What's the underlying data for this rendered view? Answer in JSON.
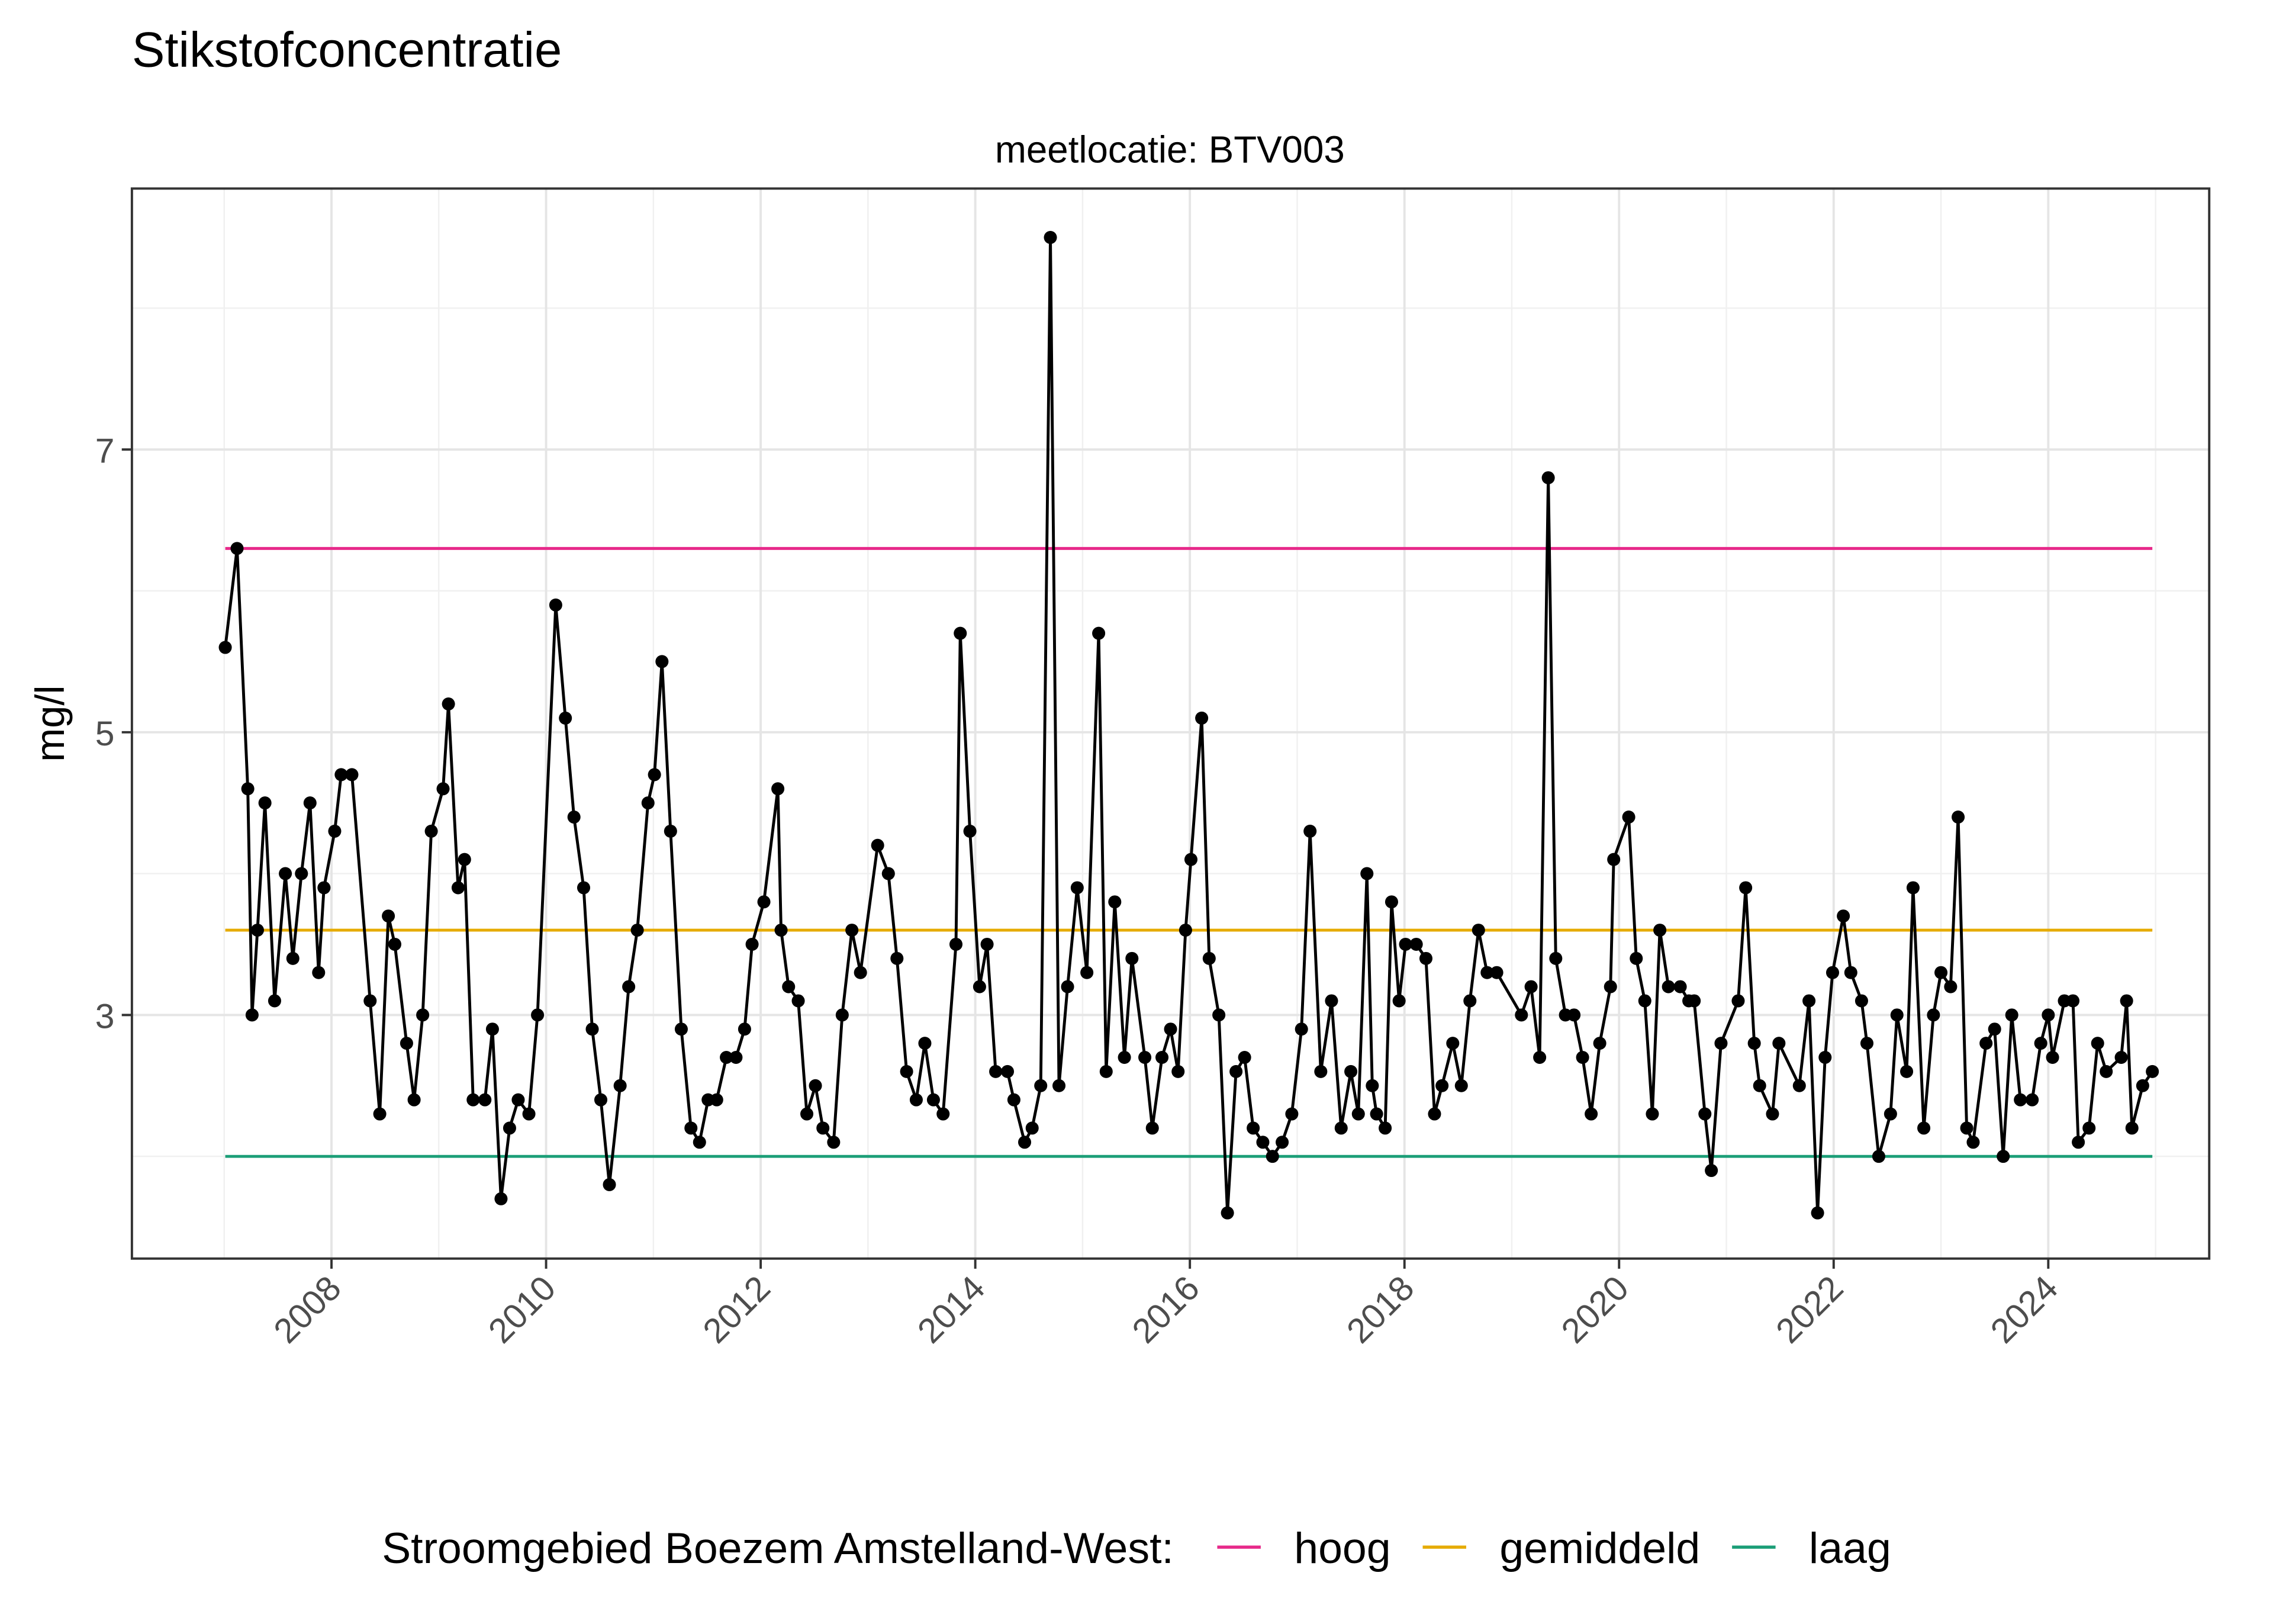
{
  "chart_data": {
    "type": "line",
    "title": "Stikstofconcentratie",
    "subtitle": "meetlocatie: BTV003",
    "y_label": "mg/l",
    "legend_title": "Stroomgebied Boezem Amstelland-West:",
    "legend_position": "bottom",
    "grid": true,
    "xlim": [
      2006.14,
      2025.5
    ],
    "xticks": [
      2008,
      2010,
      2012,
      2014,
      2016,
      2018,
      2020,
      2022,
      2024
    ],
    "x_minor_ticks": [
      2007,
      2009,
      2011,
      2013,
      2015,
      2017,
      2019,
      2021,
      2023,
      2025
    ],
    "ylim": [
      1.277,
      8.846
    ],
    "yticks": [
      3,
      5,
      7
    ],
    "y_minor_ticks": [
      2,
      4,
      6,
      8
    ],
    "x": [
      2007.01,
      2007.12,
      2007.22,
      2007.26,
      2007.31,
      2007.38,
      2007.47,
      2007.57,
      2007.64,
      2007.72,
      2007.8,
      2007.88,
      2007.93,
      2008.03,
      2008.09,
      2008.19,
      2008.36,
      2008.45,
      2008.53,
      2008.59,
      2008.7,
      2008.77,
      2008.85,
      2008.93,
      2009.04,
      2009.09,
      2009.18,
      2009.24,
      2009.32,
      2009.43,
      2009.5,
      2009.58,
      2009.66,
      2009.74,
      2009.84,
      2009.92,
      2010.09,
      2010.18,
      2010.26,
      2010.35,
      2010.43,
      2010.51,
      2010.59,
      2010.69,
      2010.77,
      2010.85,
      2010.95,
      2011.01,
      2011.08,
      2011.16,
      2011.26,
      2011.35,
      2011.43,
      2011.51,
      2011.59,
      2011.68,
      2011.77,
      2011.85,
      2011.92,
      2012.03,
      2012.16,
      2012.19,
      2012.26,
      2012.35,
      2012.43,
      2012.51,
      2012.58,
      2012.68,
      2012.76,
      2012.85,
      2012.93,
      2013.09,
      2013.19,
      2013.27,
      2013.36,
      2013.45,
      2013.53,
      2013.61,
      2013.7,
      2013.82,
      2013.86,
      2013.95,
      2014.04,
      2014.11,
      2014.19,
      2014.3,
      2014.36,
      2014.46,
      2014.53,
      2014.61,
      2014.7,
      2014.78,
      2014.86,
      2014.95,
      2015.04,
      2015.15,
      2015.22,
      2015.3,
      2015.39,
      2015.46,
      2015.58,
      2015.65,
      2015.74,
      2015.82,
      2015.89,
      2015.96,
      2016.01,
      2016.11,
      2016.18,
      2016.27,
      2016.35,
      2016.43,
      2016.51,
      2016.59,
      2016.68,
      2016.77,
      2016.86,
      2016.95,
      2017.04,
      2017.12,
      2017.22,
      2017.32,
      2017.41,
      2017.5,
      2017.57,
      2017.65,
      2017.7,
      2017.74,
      2017.82,
      2017.88,
      2017.95,
      2018.01,
      2018.11,
      2018.2,
      2018.28,
      2018.35,
      2018.45,
      2018.53,
      2018.61,
      2018.69,
      2018.77,
      2018.86,
      2019.09,
      2019.18,
      2019.26,
      2019.34,
      2019.41,
      2019.5,
      2019.58,
      2019.66,
      2019.74,
      2019.82,
      2019.92,
      2019.95,
      2020.09,
      2020.16,
      2020.24,
      2020.31,
      2020.38,
      2020.46,
      2020.57,
      2020.65,
      2020.7,
      2020.8,
      2020.86,
      2020.95,
      2021.11,
      2021.18,
      2021.26,
      2021.31,
      2021.43,
      2021.49,
      2021.68,
      2021.77,
      2021.85,
      2021.92,
      2021.99,
      2022.09,
      2022.16,
      2022.26,
      2022.31,
      2022.42,
      2022.53,
      2022.59,
      2022.68,
      2022.74,
      2022.84,
      2022.93,
      2023.0,
      2023.09,
      2023.16,
      2023.24,
      2023.3,
      2023.42,
      2023.5,
      2023.58,
      2023.66,
      2023.74,
      2023.85,
      2023.93,
      2024.0,
      2024.04,
      2024.15,
      2024.23,
      2024.28,
      2024.38,
      2024.46,
      2024.54,
      2024.68,
      2024.73,
      2024.78,
      2024.88,
      2024.97
    ],
    "series": [
      {
        "color": "#000000",
        "values": [
          5.6,
          6.3,
          4.6,
          3.0,
          3.6,
          4.5,
          3.1,
          4.0,
          3.4,
          4.0,
          4.5,
          3.3,
          3.9,
          4.3,
          4.7,
          4.7,
          3.1,
          2.3,
          3.7,
          3.5,
          2.8,
          2.4,
          3.0,
          4.3,
          4.6,
          5.2,
          3.9,
          4.1,
          2.4,
          2.4,
          2.9,
          1.7,
          2.2,
          2.4,
          2.3,
          3.0,
          5.9,
          5.1,
          4.4,
          3.9,
          2.9,
          2.4,
          1.8,
          2.5,
          3.2,
          3.6,
          4.5,
          4.7,
          5.5,
          4.3,
          2.9,
          2.2,
          2.1,
          2.4,
          2.4,
          2.7,
          2.7,
          2.9,
          3.5,
          3.8,
          4.6,
          3.6,
          3.2,
          3.1,
          2.3,
          2.5,
          2.2,
          2.1,
          3.0,
          3.6,
          3.3,
          4.2,
          4.0,
          3.4,
          2.6,
          2.4,
          2.8,
          2.4,
          2.3,
          3.5,
          5.7,
          4.3,
          3.2,
          3.5,
          2.6,
          2.6,
          2.4,
          2.1,
          2.2,
          2.5,
          8.5,
          2.5,
          3.2,
          3.9,
          3.3,
          5.7,
          2.6,
          3.8,
          2.7,
          3.4,
          2.7,
          2.2,
          2.7,
          2.9,
          2.6,
          3.6,
          4.1,
          5.1,
          3.4,
          3.0,
          1.6,
          2.6,
          2.7,
          2.2,
          2.1,
          2.0,
          2.1,
          2.3,
          2.9,
          4.3,
          2.6,
          3.1,
          2.2,
          2.6,
          2.3,
          4.0,
          2.5,
          2.3,
          2.2,
          3.8,
          3.1,
          3.5,
          3.5,
          3.4,
          2.3,
          2.5,
          2.8,
          2.5,
          3.1,
          3.6,
          3.3,
          3.3,
          3.0,
          3.2,
          2.7,
          6.8,
          3.4,
          3.0,
          3.0,
          2.7,
          2.3,
          2.8,
          3.2,
          4.1,
          4.4,
          3.4,
          3.1,
          2.3,
          3.6,
          3.2,
          3.2,
          3.1,
          3.1,
          2.3,
          1.9,
          2.8,
          3.1,
          3.9,
          2.8,
          2.5,
          2.3,
          2.8,
          2.5,
          3.1,
          1.6,
          2.7,
          3.3,
          3.7,
          3.3,
          3.1,
          2.8,
          2.0,
          2.3,
          3.0,
          2.6,
          3.9,
          2.2,
          3.0,
          3.3,
          3.2,
          4.4,
          2.2,
          2.1,
          2.8,
          2.9,
          2.0,
          3.0,
          2.4,
          2.4,
          2.8,
          3.0,
          2.7,
          3.1,
          3.1,
          2.1,
          2.2,
          2.8,
          2.6,
          2.7,
          3.1,
          2.2,
          2.5,
          2.6
        ]
      }
    ],
    "reference_lines": [
      {
        "name": "hoog",
        "color": "#e7298a",
        "value": 6.3
      },
      {
        "name": "gemiddeld",
        "color": "#e6ab02",
        "value": 3.6
      },
      {
        "name": "laag",
        "color": "#1b9e77",
        "value": 2.0
      }
    ]
  }
}
